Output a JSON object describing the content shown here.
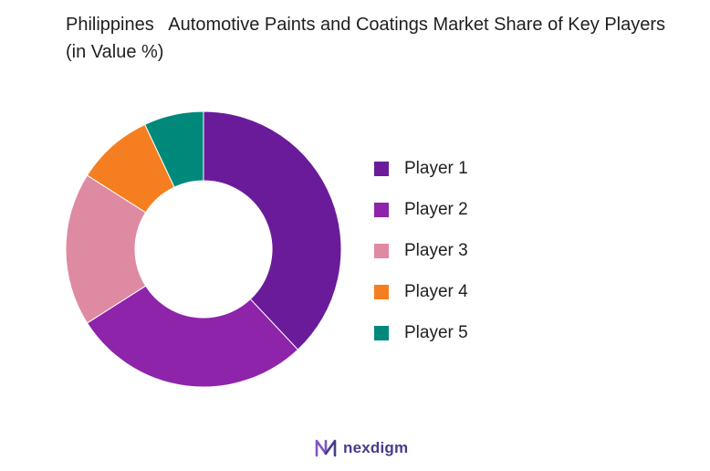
{
  "chart_data": {
    "type": "pie",
    "title": "Philippines   Automotive Paints and Coatings Market Share of Key Players (in Value %)",
    "categories": [
      "Player 1",
      "Player 2",
      "Player 3",
      "Player 4",
      "Player 5"
    ],
    "values": [
      38,
      28,
      18,
      9,
      7
    ],
    "colors": [
      "#6a1b9a",
      "#8e24aa",
      "#df8aa3",
      "#f57f20",
      "#00897b"
    ],
    "donut": true,
    "legend_position": "right"
  },
  "brand": {
    "name": "nexdigm",
    "icon": "nexdigm-logo-icon"
  }
}
